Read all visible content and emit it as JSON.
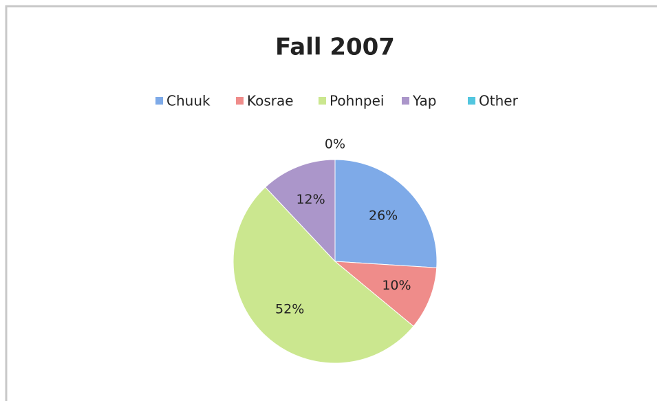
{
  "chart_data": {
    "type": "pie",
    "title": "Fall 2007",
    "categories": [
      "Chuuk",
      "Kosrae",
      "Pohnpei",
      "Yap",
      "Other"
    ],
    "values": [
      26,
      10,
      52,
      12,
      0
    ],
    "value_labels": [
      "26%",
      "10%",
      "52%",
      "12%",
      "0%"
    ],
    "colors": [
      "#7eaae8",
      "#ef8c8a",
      "#cbe78f",
      "#ab96ca",
      "#52c6df"
    ],
    "legend": "top"
  }
}
